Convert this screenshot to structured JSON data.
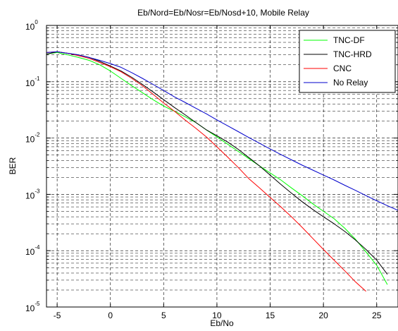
{
  "chart_data": {
    "type": "line",
    "title": "Eb/Nord=Eb/Nosr=Eb/Nosd+10, Mobile Relay",
    "xlabel": "Eb/No",
    "ylabel": "BER",
    "xlim": [
      -6,
      27
    ],
    "ylim": [
      1e-05,
      1
    ],
    "yscale": "log",
    "grid": true,
    "legend_position": "top-right",
    "x_ticks": [
      -5,
      0,
      5,
      10,
      15,
      20,
      25
    ],
    "x_tick_labels": [
      "-5",
      "0",
      "5",
      "10",
      "15",
      "20",
      "25"
    ],
    "y_tick_labels": [
      {
        "base": "10",
        "exp": "-5",
        "value": 1e-05
      },
      {
        "base": "10",
        "exp": "-4",
        "value": 0.0001
      },
      {
        "base": "10",
        "exp": "-3",
        "value": 0.001
      },
      {
        "base": "10",
        "exp": "-2",
        "value": 0.01
      },
      {
        "base": "10",
        "exp": "-1",
        "value": 0.1
      },
      {
        "base": "10",
        "exp": "0",
        "value": 1
      }
    ],
    "series": [
      {
        "name": "TNC-DF",
        "color": "#00ff00",
        "x": [
          -6,
          -5,
          -4,
          -3,
          -2,
          -1,
          0,
          1,
          2,
          3,
          4,
          5,
          6,
          7,
          8,
          9,
          10,
          11,
          12,
          13,
          14,
          15,
          16,
          17,
          18,
          19,
          20,
          21,
          22,
          23,
          24,
          25,
          26
        ],
        "y": [
          0.31,
          0.33,
          0.3,
          0.27,
          0.24,
          0.2,
          0.155,
          0.115,
          0.085,
          0.064,
          0.048,
          0.037,
          0.03,
          0.024,
          0.019,
          0.014,
          0.0105,
          0.0078,
          0.0058,
          0.0043,
          0.0032,
          0.0024,
          0.0018,
          0.0013,
          0.00095,
          0.00068,
          0.0005,
          0.00037,
          0.00025,
          0.00016,
          9.5e-05,
          5.5e-05,
          2.5e-05
        ]
      },
      {
        "name": "TNC-HRD",
        "color": "#000000",
        "x": [
          -6,
          -5,
          -4,
          -3,
          -2,
          -1,
          0,
          1,
          2,
          3,
          4,
          5,
          6,
          7,
          8,
          9,
          10,
          11,
          12,
          13,
          14,
          15,
          16,
          17,
          18,
          19,
          20,
          21,
          22,
          23,
          24,
          25,
          26
        ],
        "y": [
          0.31,
          0.34,
          0.32,
          0.3,
          0.27,
          0.23,
          0.19,
          0.155,
          0.12,
          0.09,
          0.066,
          0.048,
          0.035,
          0.026,
          0.019,
          0.014,
          0.011,
          0.0085,
          0.0063,
          0.0045,
          0.0032,
          0.0022,
          0.0015,
          0.00105,
          0.00074,
          0.00054,
          0.0004,
          0.0003,
          0.00022,
          0.000155,
          0.000105,
          6.8e-05,
          3.8e-05
        ]
      },
      {
        "name": "CNC",
        "color": "#ff0000",
        "x": [
          -6,
          -5,
          -4,
          -3,
          -2,
          -1,
          0,
          1,
          2,
          3,
          4,
          5,
          6,
          7,
          8,
          9,
          10,
          11,
          12,
          13,
          14,
          15,
          16,
          17,
          18,
          19,
          20,
          21,
          22,
          23,
          24
        ],
        "y": [
          0.33,
          0.34,
          0.32,
          0.29,
          0.26,
          0.22,
          0.185,
          0.15,
          0.115,
          0.085,
          0.06,
          0.042,
          0.03,
          0.021,
          0.015,
          0.0105,
          0.007,
          0.0046,
          0.003,
          0.0019,
          0.0013,
          0.00088,
          0.0006,
          0.0004,
          0.00026,
          0.000165,
          0.000105,
          6.8e-05,
          4.4e-05,
          2.8e-05,
          1.9e-05
        ]
      },
      {
        "name": "No Relay",
        "color": "#0000cc",
        "x": [
          -6,
          -5,
          -4,
          -3,
          -2,
          -1,
          0,
          1,
          2,
          3,
          4,
          5,
          6,
          7,
          8,
          9,
          10,
          11,
          12,
          13,
          14,
          15,
          16,
          17,
          18,
          19,
          20,
          21,
          22,
          23,
          24,
          25,
          26,
          27
        ],
        "y": [
          0.33,
          0.34,
          0.32,
          0.3,
          0.27,
          0.24,
          0.21,
          0.18,
          0.145,
          0.115,
          0.09,
          0.07,
          0.054,
          0.043,
          0.034,
          0.027,
          0.021,
          0.0165,
          0.013,
          0.0102,
          0.0081,
          0.0064,
          0.0051,
          0.0041,
          0.0033,
          0.0027,
          0.0022,
          0.0018,
          0.00145,
          0.00118,
          0.00095,
          0.00077,
          0.00063,
          0.00052
        ]
      }
    ]
  }
}
